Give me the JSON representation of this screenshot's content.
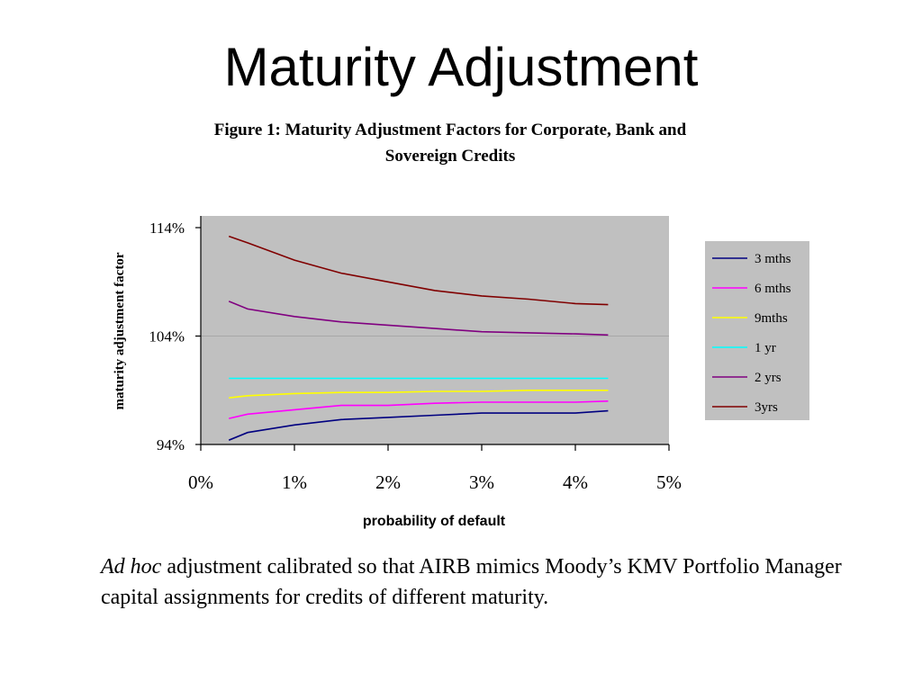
{
  "slide": {
    "title": "Maturity Adjustment",
    "caption_italic": "Ad hoc",
    "caption_rest": " adjustment calibrated so that AIRB mimics Moody’s KMV Portfolio Manager capital assignments for credits of different maturity."
  },
  "chart_data": {
    "type": "line",
    "title_line1": "Figure 1: Maturity Adjustment Factors for Corporate, Bank and",
    "title_line2": "Sovereign Credits",
    "xlabel": "probability of default",
    "ylabel": "maturity adjustment factor",
    "xlim": [
      0,
      5
    ],
    "ylim": [
      94,
      114
    ],
    "x_ticks": [
      "0%",
      "1%",
      "2%",
      "3%",
      "4%",
      "5%"
    ],
    "y_ticks": [
      "94%",
      "104%",
      "114%"
    ],
    "x_tick_values": [
      0,
      1,
      2,
      3,
      4,
      5
    ],
    "y_tick_values": [
      94,
      104,
      114
    ],
    "gridlines_y": [
      104
    ],
    "legend_position": "right",
    "plot_bg": "#c0c0c0",
    "x": [
      0.3,
      0.5,
      1.0,
      1.5,
      2.0,
      2.5,
      3.0,
      3.5,
      4.0,
      4.35
    ],
    "series": [
      {
        "name": "3 mths",
        "color": "#000080",
        "values": [
          94.4,
          95.1,
          95.8,
          96.3,
          96.5,
          96.7,
          96.9,
          96.9,
          96.9,
          97.1
        ]
      },
      {
        "name": "6 mths",
        "color": "#ff00ff",
        "values": [
          96.4,
          96.8,
          97.2,
          97.6,
          97.6,
          97.8,
          97.9,
          97.9,
          97.9,
          98.0
        ]
      },
      {
        "name": "9mths",
        "color": "#ffff00",
        "values": [
          98.3,
          98.5,
          98.7,
          98.8,
          98.8,
          98.9,
          98.9,
          99.0,
          99.0,
          99.0
        ]
      },
      {
        "name": "1 yr",
        "color": "#00ffff",
        "values": [
          100.1,
          100.1,
          100.1,
          100.1,
          100.1,
          100.1,
          100.1,
          100.1,
          100.1,
          100.1
        ]
      },
      {
        "name": "2 yrs",
        "color": "#800080",
        "values": [
          107.2,
          106.5,
          105.8,
          105.3,
          105.0,
          104.7,
          104.4,
          104.3,
          104.2,
          104.1
        ]
      },
      {
        "name": "3yrs",
        "color": "#800000",
        "values": [
          113.2,
          112.6,
          111.0,
          109.8,
          109.0,
          108.2,
          107.7,
          107.4,
          107.0,
          106.9
        ]
      }
    ]
  }
}
